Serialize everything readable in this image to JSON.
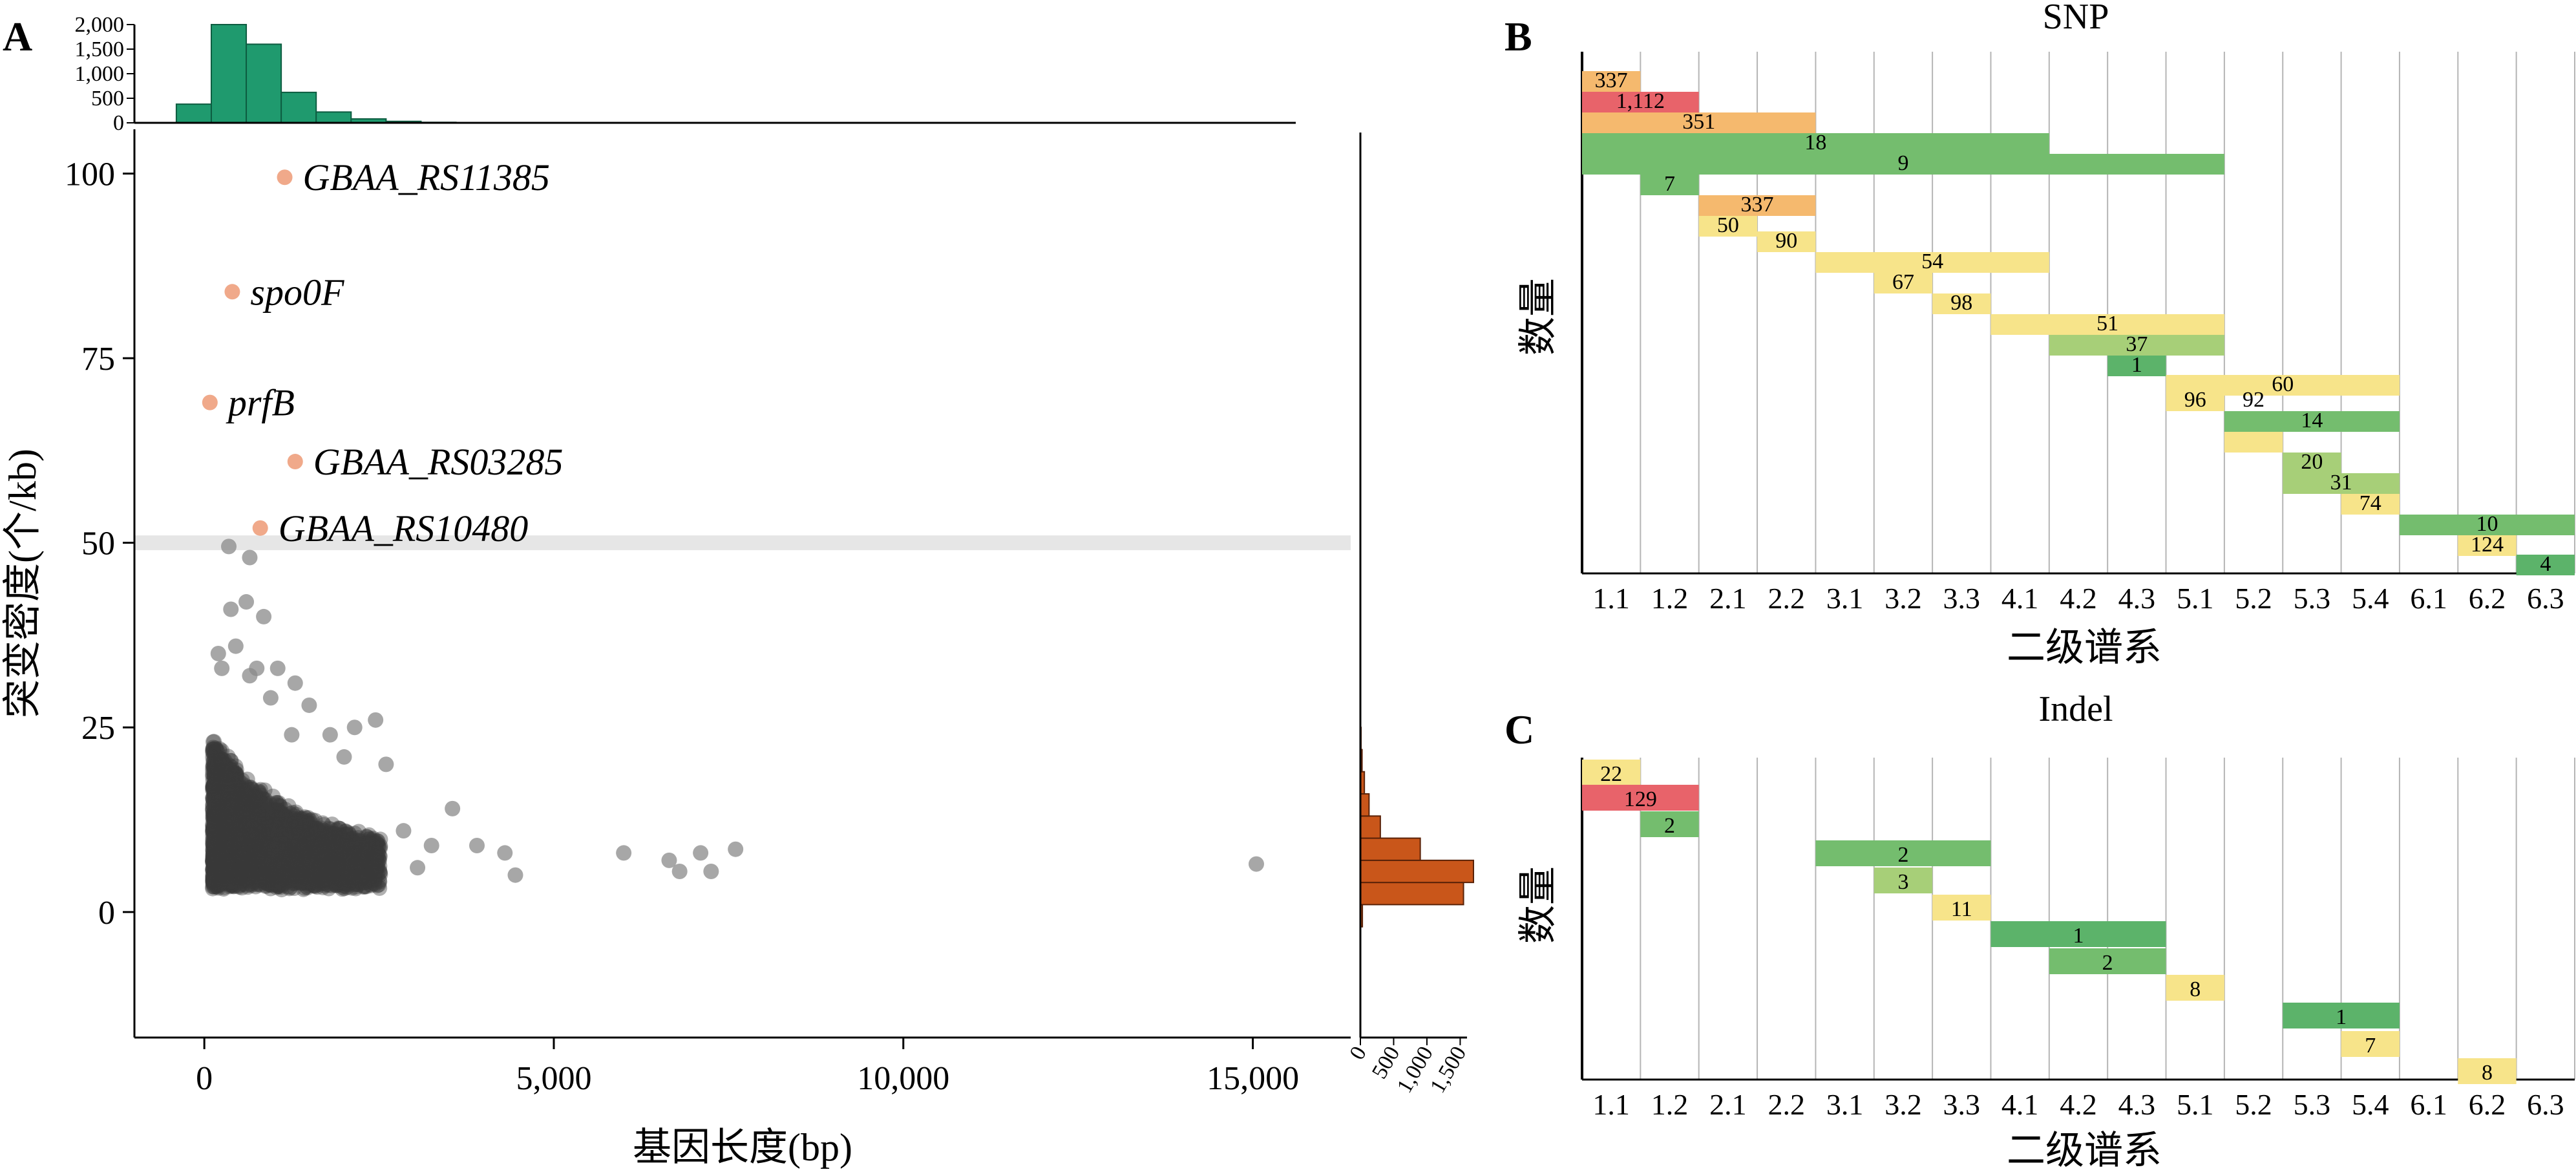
{
  "colors": {
    "scatter_point": "#3a3a3a",
    "highlight_point": "#f0a98a",
    "top_hist": "#1f9a6e",
    "right_hist": "#c9561a",
    "threshold_band": "#e6e6e6",
    "cell_red": "#e8636a",
    "cell_orange": "#f5b96e",
    "cell_yellow": "#f7e48a",
    "cell_lightgreen": "#a7cf78",
    "cell_green": "#74bd6e",
    "cell_darkgreen": "#5cb36a"
  },
  "panels": {
    "A": "A",
    "B": "B",
    "C": "C"
  },
  "chart_data": [
    {
      "panel": "A",
      "type": "scatter",
      "xlabel": "基因长度(bp)",
      "ylabel": "突变密度(个/kb)",
      "xlim": [
        -1000,
        16400
      ],
      "ylim": [
        -17,
        106
      ],
      "xticks": [
        0,
        5000,
        10000,
        15000
      ],
      "xtick_labels": [
        "0",
        "5,000",
        "10,000",
        "15,000"
      ],
      "yticks": [
        0,
        25,
        50,
        75,
        100
      ],
      "ytick_labels": [
        "0",
        "25",
        "50",
        "75",
        "100"
      ],
      "threshold_band": [
        49,
        51
      ],
      "highlighted_genes": [
        {
          "label": "GBAA_RS11385",
          "x": 1150,
          "y": 99.5
        },
        {
          "label": "spo0F",
          "x": 400,
          "y": 84
        },
        {
          "label": "prfB",
          "x": 80,
          "y": 69
        },
        {
          "label": "GBAA_RS03285",
          "x": 1300,
          "y": 61
        },
        {
          "label": "GBAA_RS10480",
          "x": 800,
          "y": 52
        }
      ],
      "outlier_points": [
        {
          "x": 350,
          "y": 49.5
        },
        {
          "x": 650,
          "y": 48
        },
        {
          "x": 380,
          "y": 41
        },
        {
          "x": 600,
          "y": 42
        },
        {
          "x": 850,
          "y": 40
        },
        {
          "x": 450,
          "y": 36
        },
        {
          "x": 250,
          "y": 33
        },
        {
          "x": 200,
          "y": 35
        },
        {
          "x": 750,
          "y": 33
        },
        {
          "x": 650,
          "y": 32
        },
        {
          "x": 1050,
          "y": 33
        },
        {
          "x": 1300,
          "y": 31
        },
        {
          "x": 950,
          "y": 29
        },
        {
          "x": 1500,
          "y": 28
        },
        {
          "x": 1250,
          "y": 24
        },
        {
          "x": 1800,
          "y": 24
        },
        {
          "x": 2150,
          "y": 25
        },
        {
          "x": 2450,
          "y": 26
        },
        {
          "x": 2600,
          "y": 20
        },
        {
          "x": 2000,
          "y": 21
        },
        {
          "x": 3550,
          "y": 14
        },
        {
          "x": 3900,
          "y": 9
        },
        {
          "x": 4300,
          "y": 8
        },
        {
          "x": 4450,
          "y": 5
        },
        {
          "x": 3250,
          "y": 9
        },
        {
          "x": 3050,
          "y": 6
        },
        {
          "x": 2850,
          "y": 11
        },
        {
          "x": 6000,
          "y": 8
        },
        {
          "x": 6650,
          "y": 7
        },
        {
          "x": 7100,
          "y": 8
        },
        {
          "x": 7600,
          "y": 8.5
        },
        {
          "x": 6800,
          "y": 5.5
        },
        {
          "x": 7250,
          "y": 5.5
        },
        {
          "x": 15050,
          "y": 6.5
        }
      ],
      "top_histogram": {
        "bin_edges": [
          -400,
          100,
          600,
          1100,
          1600,
          2100,
          2600,
          3100,
          3600,
          4100
        ],
        "counts": [
          380,
          2000,
          1600,
          620,
          220,
          80,
          30,
          10,
          5
        ],
        "ticks": [
          0,
          500,
          1000,
          1500,
          2000
        ],
        "tick_labels": [
          "0",
          "500",
          "1,000",
          "1,500",
          "2,000"
        ]
      },
      "right_histogram": {
        "bin_edges": [
          -2,
          1,
          4,
          7,
          10,
          13,
          16,
          19,
          22,
          25
        ],
        "counts": [
          30,
          1550,
          1700,
          900,
          300,
          130,
          60,
          25,
          10
        ],
        "ticks": [
          0,
          500,
          1000,
          1500
        ],
        "tick_labels": [
          "0",
          "500",
          "1,000",
          "1,500"
        ]
      }
    },
    {
      "panel": "B",
      "type": "heatmap",
      "title": "SNP",
      "xlabel": "二级谱系",
      "ylabel": "数量",
      "categories": [
        "1.1",
        "1.2",
        "2.1",
        "2.2",
        "3.1",
        "3.2",
        "3.3",
        "4.1",
        "4.2",
        "4.3",
        "5.1",
        "5.2",
        "5.3",
        "5.4",
        "6.1",
        "6.2",
        "6.3"
      ],
      "rows": [
        {
          "start": "1.1",
          "end": "1.1",
          "value": "337",
          "color": "orange"
        },
        {
          "start": "1.1",
          "end": "1.2",
          "value": "1,112",
          "color": "red"
        },
        {
          "start": "1.1",
          "end": "2.2",
          "value": "351",
          "color": "orange"
        },
        {
          "start": "1.1",
          "end": "4.1",
          "value": "18",
          "color": "green"
        },
        {
          "start": "1.1",
          "end": "5.1",
          "value": "9",
          "color": "green"
        },
        {
          "start": "1.2",
          "end": "1.2",
          "value": "7",
          "color": "green"
        },
        {
          "start": "2.1",
          "end": "2.2",
          "value": "337",
          "color": "orange"
        },
        {
          "start": "2.1",
          "end": "2.1",
          "value": "50",
          "color": "yellow"
        },
        {
          "start": "2.2",
          "end": "2.2",
          "value": "90",
          "color": "yellow"
        },
        {
          "start": "3.1",
          "end": "4.1",
          "value": "54",
          "color": "yellow"
        },
        {
          "start": "3.2",
          "end": "3.2",
          "value": "67",
          "color": "yellow"
        },
        {
          "start": "3.3",
          "end": "3.3",
          "value": "98",
          "color": "yellow"
        },
        {
          "start": "4.1",
          "end": "5.1",
          "value": "51",
          "color": "yellow"
        },
        {
          "start": "4.2",
          "end": "5.1",
          "value": "37",
          "color": "lightgreen"
        },
        {
          "start": "4.3",
          "end": "4.3",
          "value": "1",
          "color": "darkgreen"
        },
        {
          "start": "5.1",
          "end": "5.4",
          "value": "60",
          "color": "yellow"
        },
        {
          "start": "5.1",
          "end": "5.1",
          "value": "96",
          "color": "yellow"
        },
        {
          "start": "5.2",
          "end": "5.2",
          "value": "92",
          "color": ""
        },
        {
          "start": "5.2",
          "end": "5.4",
          "value": "14",
          "color": "green"
        },
        {
          "start": "5.2",
          "end": "5.2",
          "value": "",
          "color": "yellow"
        },
        {
          "start": "5.3",
          "end": "5.3",
          "value": "20",
          "color": "lightgreen"
        },
        {
          "start": "5.3",
          "end": "5.4",
          "value": "31",
          "color": "lightgreen"
        },
        {
          "start": "5.4",
          "end": "5.4",
          "value": "74",
          "color": "yellow"
        },
        {
          "start": "6.1",
          "end": "6.3",
          "value": "10",
          "color": "green"
        },
        {
          "start": "6.2",
          "end": "6.2",
          "value": "124",
          "color": "yellow"
        },
        {
          "start": "6.3",
          "end": "6.3",
          "value": "4",
          "color": "darkgreen"
        }
      ]
    },
    {
      "panel": "C",
      "type": "heatmap",
      "title": "Indel",
      "xlabel": "二级谱系",
      "ylabel": "数量",
      "categories": [
        "1.1",
        "1.2",
        "2.1",
        "2.2",
        "3.1",
        "3.2",
        "3.3",
        "4.1",
        "4.2",
        "4.3",
        "5.1",
        "5.2",
        "5.3",
        "5.4",
        "6.1",
        "6.2",
        "6.3"
      ],
      "rows": [
        {
          "start": "1.1",
          "end": "1.1",
          "value": "22",
          "color": "yellow"
        },
        {
          "start": "1.1",
          "end": "1.2",
          "value": "129",
          "color": "red"
        },
        {
          "start": "1.2",
          "end": "1.2",
          "value": "2",
          "color": "green"
        },
        {
          "start": "3.1",
          "end": "3.3",
          "value": "2",
          "color": "green"
        },
        {
          "start": "3.2",
          "end": "3.2",
          "value": "3",
          "color": "lightgreen"
        },
        {
          "start": "3.3",
          "end": "3.3",
          "value": "11",
          "color": "yellow"
        },
        {
          "start": "4.1",
          "end": "4.3",
          "value": "1",
          "color": "darkgreen"
        },
        {
          "start": "4.2",
          "end": "4.3",
          "value": "2",
          "color": "green"
        },
        {
          "start": "5.1",
          "end": "5.1",
          "value": "8",
          "color": "yellow"
        },
        {
          "start": "5.3",
          "end": "5.4",
          "value": "1",
          "color": "darkgreen"
        },
        {
          "start": "5.4",
          "end": "5.4",
          "value": "7",
          "color": "yellow"
        },
        {
          "start": "6.2",
          "end": "6.2",
          "value": "8",
          "color": "yellow"
        }
      ]
    }
  ]
}
